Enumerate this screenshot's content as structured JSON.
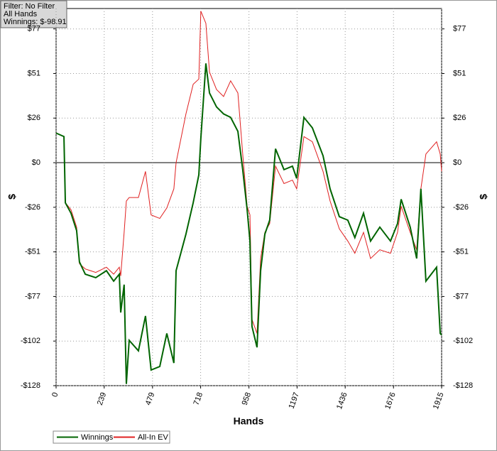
{
  "chart_data": {
    "type": "line",
    "annotations": [
      "Filter: No Filter",
      "All Hands",
      "Winnings: $-98.91"
    ],
    "xlabel": "Hands",
    "ylabel": "$",
    "x": [
      0,
      39,
      46,
      74,
      102,
      116,
      145,
      197,
      250,
      286,
      314,
      321,
      338,
      349,
      363,
      409,
      444,
      472,
      515,
      550,
      585,
      596,
      645,
      681,
      709,
      719,
      744,
      762,
      797,
      832,
      867,
      903,
      927,
      949,
      963,
      973,
      998,
      1016,
      1037,
      1061,
      1090,
      1132,
      1174,
      1195,
      1231,
      1273,
      1326,
      1361,
      1407,
      1449,
      1484,
      1527,
      1562,
      1608,
      1661,
      1696,
      1714,
      1759,
      1791,
      1812,
      1837,
      1890,
      1908,
      1915
    ],
    "series": [
      {
        "name": "Winnings",
        "color": "#006400",
        "values": [
          17,
          15,
          -23,
          -29,
          -39,
          -57,
          -64,
          -66,
          -62,
          -68,
          -64,
          -86,
          -70,
          -127,
          -102,
          -108,
          -88,
          -119,
          -117,
          -98,
          -115,
          -62,
          -41,
          -23,
          -7,
          14,
          57,
          40,
          32,
          28,
          26,
          18,
          -4,
          -27,
          -45,
          -94,
          -106,
          -62,
          -41,
          -33,
          8,
          -4,
          -2,
          -9,
          26,
          20,
          4,
          -15,
          -31,
          -33,
          -43,
          -29,
          -45,
          -37,
          -45,
          -35,
          -21,
          -37,
          -55,
          -15,
          -68,
          -60,
          -98,
          -98.91
        ]
      },
      {
        "name": "All-In EV",
        "color": "#e02020",
        "values": [
          17,
          15,
          -23,
          -27,
          -37,
          -58,
          -61,
          -63,
          -60,
          -64,
          -60,
          -65,
          -40,
          -22,
          -20,
          -20,
          -5,
          -30,
          -32,
          -26,
          -15,
          0,
          28,
          45,
          48,
          87,
          80,
          52,
          42,
          38,
          47,
          40,
          5,
          -25,
          -30,
          -90,
          -98,
          -55,
          -40,
          -35,
          -2,
          -12,
          -10,
          -15,
          15,
          12,
          -5,
          -22,
          -38,
          -45,
          -52,
          -40,
          -55,
          -50,
          -52,
          -40,
          -25,
          -40,
          -50,
          -15,
          5,
          12,
          5,
          -5
        ]
      }
    ],
    "xlim": [
      0,
      1915
    ],
    "xticks": [
      0,
      239,
      479,
      718,
      958,
      1197,
      1436,
      1676,
      1915
    ],
    "ylim": [
      -128,
      88.5
    ],
    "yticks": [
      {
        "value": 76.8,
        "label": "$77"
      },
      {
        "value": 51.2,
        "label": "$51"
      },
      {
        "value": 25.6,
        "label": "$26"
      },
      {
        "value": 0,
        "label": "$0"
      },
      {
        "value": -25.6,
        "label": "-$26"
      },
      {
        "value": -51.2,
        "label": "-$51"
      },
      {
        "value": -76.8,
        "label": "-$77"
      },
      {
        "value": -102.4,
        "label": "-$102"
      },
      {
        "value": -128,
        "label": "-$128"
      }
    ],
    "grid": true
  }
}
